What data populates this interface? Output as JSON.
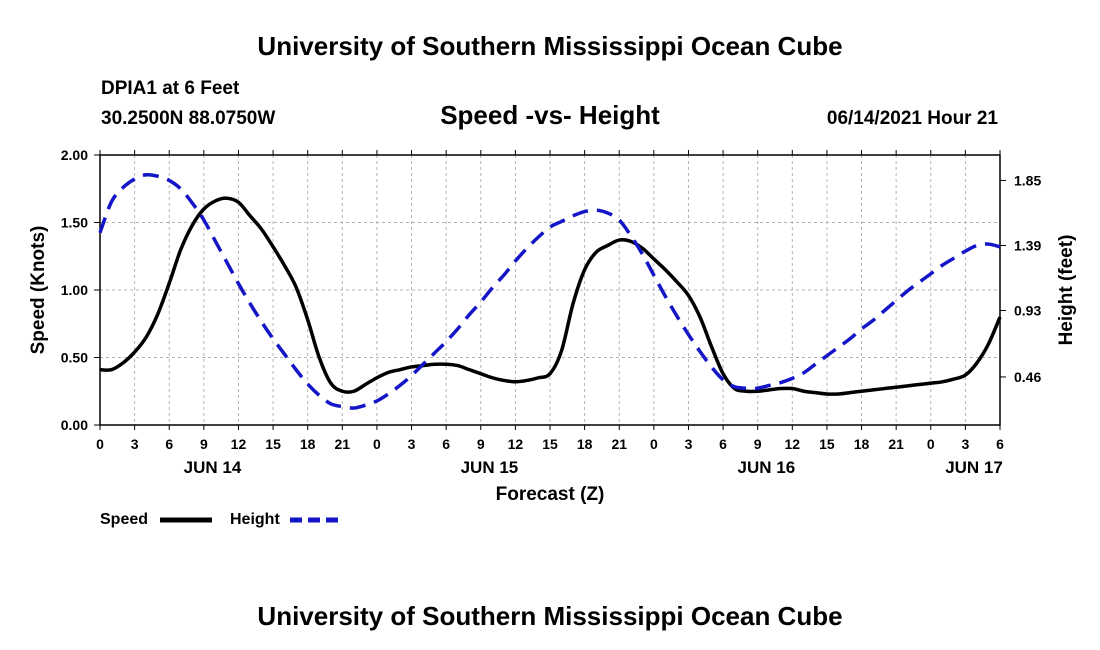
{
  "header": {
    "title": "University of Southern Mississippi Ocean Cube",
    "station": "DPIA1 at 6 Feet",
    "coords": "30.2500N  88.0750W",
    "chart_title": "Speed -vs- Height",
    "datetime": "06/14/2021 Hour 21"
  },
  "footer": {
    "title": "University of Southern Mississippi Ocean Cube"
  },
  "colors": {
    "speed": "#000000",
    "height": "#1515c8",
    "grid": "#b4b4b4"
  },
  "chart_data": {
    "type": "line",
    "title": "Speed -vs- Height",
    "xlabel": "Forecast (Z)",
    "ylabel": "Speed (Knots)",
    "y2label": "Height (feet)",
    "x_unit": "hours from 0Z Jun 14",
    "xlim": [
      0,
      78
    ],
    "ylim": [
      0,
      2.0
    ],
    "y2lim": [
      0.12,
      2.03
    ],
    "grid": true,
    "x_ticks": [
      {
        "x": 0,
        "label": "0"
      },
      {
        "x": 3,
        "label": "3"
      },
      {
        "x": 6,
        "label": "6"
      },
      {
        "x": 9,
        "label": "9"
      },
      {
        "x": 12,
        "label": "12"
      },
      {
        "x": 15,
        "label": "15"
      },
      {
        "x": 18,
        "label": "18"
      },
      {
        "x": 21,
        "label": "21"
      },
      {
        "x": 24,
        "label": "0"
      },
      {
        "x": 27,
        "label": "3"
      },
      {
        "x": 30,
        "label": "6"
      },
      {
        "x": 33,
        "label": "9"
      },
      {
        "x": 36,
        "label": "12"
      },
      {
        "x": 39,
        "label": "15"
      },
      {
        "x": 42,
        "label": "18"
      },
      {
        "x": 45,
        "label": "21"
      },
      {
        "x": 48,
        "label": "0"
      },
      {
        "x": 51,
        "label": "3"
      },
      {
        "x": 54,
        "label": "6"
      },
      {
        "x": 57,
        "label": "9"
      },
      {
        "x": 60,
        "label": "12"
      },
      {
        "x": 63,
        "label": "15"
      },
      {
        "x": 66,
        "label": "18"
      },
      {
        "x": 69,
        "label": "21"
      },
      {
        "x": 72,
        "label": "0"
      },
      {
        "x": 75,
        "label": "3"
      },
      {
        "x": 78,
        "label": "6"
      }
    ],
    "date_labels": [
      {
        "x": 9.75,
        "label": "JUN 14"
      },
      {
        "x": 33.75,
        "label": "JUN 15"
      },
      {
        "x": 57.75,
        "label": "JUN 16"
      },
      {
        "x": 75.75,
        "label": "JUN 17"
      }
    ],
    "y_ticks": [
      "0.00",
      "0.50",
      "1.00",
      "1.50",
      "2.00"
    ],
    "y_tick_values": [
      0,
      0.5,
      1.0,
      1.5,
      2.0
    ],
    "y2_ticks": [
      "0.46",
      "0.93",
      "1.39",
      "1.85"
    ],
    "y2_tick_values": [
      0.46,
      0.93,
      1.39,
      1.85
    ],
    "series": [
      {
        "name": "Speed",
        "axis": "left",
        "style": "solid",
        "x": [
          0,
          1,
          2,
          3,
          4,
          5,
          6,
          7,
          8,
          9,
          10,
          11,
          12,
          13,
          14,
          15,
          16,
          17,
          18,
          19,
          20,
          21,
          22,
          23,
          24,
          25,
          26,
          27,
          28,
          29,
          30,
          31,
          32,
          33,
          34,
          35,
          36,
          37,
          38,
          39,
          40,
          41,
          42,
          43,
          44,
          45,
          46,
          47,
          48,
          49,
          50,
          51,
          52,
          53,
          54,
          55,
          56,
          57,
          58,
          59,
          60,
          61,
          62,
          63,
          64,
          65,
          66,
          67,
          68,
          69,
          70,
          71,
          72,
          73,
          74,
          75,
          76,
          77,
          78
        ],
        "values": [
          0.41,
          0.41,
          0.46,
          0.54,
          0.65,
          0.82,
          1.05,
          1.3,
          1.48,
          1.6,
          1.66,
          1.68,
          1.65,
          1.55,
          1.45,
          1.32,
          1.18,
          1.02,
          0.78,
          0.5,
          0.31,
          0.25,
          0.25,
          0.3,
          0.35,
          0.39,
          0.41,
          0.43,
          0.44,
          0.45,
          0.45,
          0.44,
          0.41,
          0.38,
          0.35,
          0.33,
          0.32,
          0.33,
          0.35,
          0.38,
          0.55,
          0.9,
          1.15,
          1.28,
          1.33,
          1.37,
          1.36,
          1.31,
          1.23,
          1.15,
          1.06,
          0.96,
          0.8,
          0.58,
          0.38,
          0.27,
          0.25,
          0.25,
          0.26,
          0.27,
          0.27,
          0.25,
          0.24,
          0.23,
          0.23,
          0.24,
          0.25,
          0.26,
          0.27,
          0.28,
          0.29,
          0.3,
          0.31,
          0.32,
          0.34,
          0.37,
          0.46,
          0.6,
          0.8
        ]
      },
      {
        "name": "Height",
        "axis": "right",
        "style": "dashed",
        "x": [
          0,
          1,
          2,
          3,
          4,
          5,
          6,
          7,
          8,
          9,
          10,
          11,
          12,
          13,
          14,
          15,
          16,
          17,
          18,
          19,
          20,
          21,
          22,
          23,
          24,
          25,
          26,
          27,
          28,
          29,
          30,
          31,
          32,
          33,
          34,
          35,
          36,
          37,
          38,
          39,
          40,
          41,
          42,
          43,
          44,
          45,
          46,
          47,
          48,
          49,
          50,
          51,
          52,
          53,
          54,
          55,
          56,
          57,
          58,
          59,
          60,
          61,
          62,
          63,
          64,
          65,
          66,
          67,
          68,
          69,
          70,
          71,
          72,
          73,
          74,
          75,
          76,
          77,
          78
        ],
        "values": [
          1.48,
          1.7,
          1.8,
          1.86,
          1.89,
          1.88,
          1.85,
          1.79,
          1.69,
          1.57,
          1.42,
          1.27,
          1.12,
          0.98,
          0.85,
          0.73,
          0.62,
          0.51,
          0.41,
          0.33,
          0.27,
          0.25,
          0.24,
          0.26,
          0.29,
          0.34,
          0.4,
          0.47,
          0.55,
          0.63,
          0.71,
          0.8,
          0.9,
          0.99,
          1.09,
          1.18,
          1.28,
          1.37,
          1.45,
          1.52,
          1.56,
          1.6,
          1.63,
          1.64,
          1.62,
          1.57,
          1.46,
          1.33,
          1.18,
          1.03,
          0.89,
          0.76,
          0.64,
          0.53,
          0.44,
          0.39,
          0.38,
          0.38,
          0.4,
          0.42,
          0.45,
          0.49,
          0.55,
          0.61,
          0.67,
          0.73,
          0.8,
          0.86,
          0.93,
          1.0,
          1.07,
          1.13,
          1.19,
          1.25,
          1.3,
          1.35,
          1.39,
          1.4,
          1.38
        ]
      }
    ],
    "legend": [
      {
        "name": "Speed",
        "style": "solid"
      },
      {
        "name": "Height",
        "style": "dashed"
      }
    ],
    "legend_position": "bottom-left"
  }
}
